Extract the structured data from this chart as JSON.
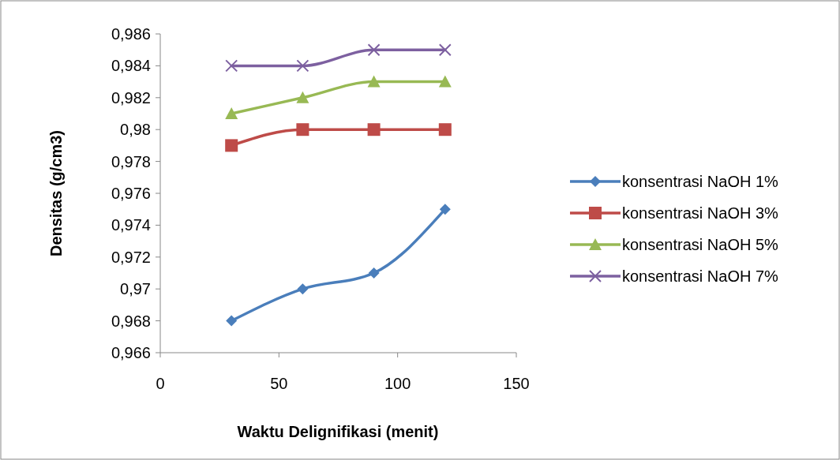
{
  "chart_data": {
    "type": "line",
    "xlabel": "Waktu Delignifikasi (menit)",
    "ylabel": "Densitas (g/cm3)",
    "x": [
      30,
      60,
      90,
      120
    ],
    "series": [
      {
        "name": "konsentrasi NaOH 1%",
        "color": "#4a7ebb",
        "marker": "diamond",
        "values": [
          0.968,
          0.97,
          0.971,
          0.975
        ]
      },
      {
        "name": "konsentrasi NaOH 3%",
        "color": "#be4b48",
        "marker": "square",
        "values": [
          0.979,
          0.98,
          0.98,
          0.98
        ]
      },
      {
        "name": "konsentrasi NaOH 5%",
        "color": "#98b954",
        "marker": "triangle",
        "values": [
          0.981,
          0.982,
          0.983,
          0.983
        ]
      },
      {
        "name": "konsentrasi NaOH 7%",
        "color": "#7d60a0",
        "marker": "cross",
        "values": [
          0.984,
          0.984,
          0.985,
          0.985
        ]
      }
    ],
    "xlim": [
      0,
      150
    ],
    "xticks": [
      0,
      50,
      100,
      150
    ],
    "ylim": [
      0.966,
      0.986
    ],
    "yticks": [
      {
        "value": 0.966,
        "label": "0,966"
      },
      {
        "value": 0.968,
        "label": "0,968"
      },
      {
        "value": 0.97,
        "label": "0,97"
      },
      {
        "value": 0.972,
        "label": "0,972"
      },
      {
        "value": 0.974,
        "label": "0,974"
      },
      {
        "value": 0.976,
        "label": "0,976"
      },
      {
        "value": 0.978,
        "label": "0,978"
      },
      {
        "value": 0.98,
        "label": "0,98"
      },
      {
        "value": 0.982,
        "label": "0,982"
      },
      {
        "value": 0.984,
        "label": "0,984"
      },
      {
        "value": 0.986,
        "label": "0,986"
      }
    ],
    "grid": false,
    "legend": "right",
    "line_style": "solid"
  }
}
